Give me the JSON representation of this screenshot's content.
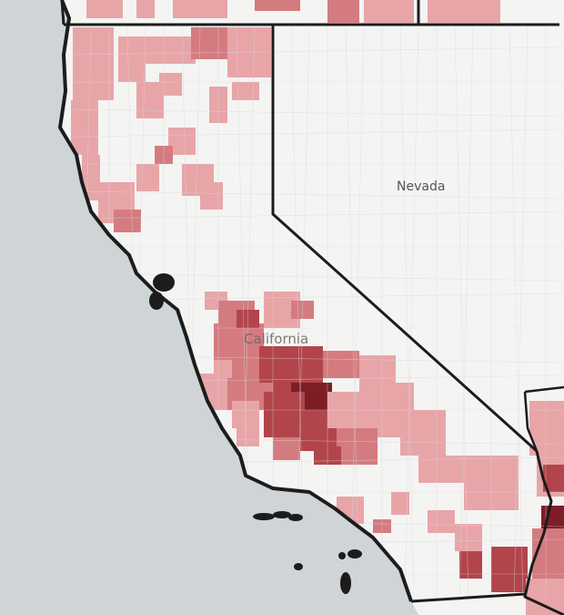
{
  "map": {
    "labels": {
      "nevada": "Nevada",
      "california": "California"
    },
    "colors": {
      "ocean": "#cfd4d7",
      "land": "#f4f4f3",
      "border": "#1c1c1c",
      "county_lines": "#d8d8d8",
      "choropleth_light": "#e8a5a8",
      "choropleth_medium": "#d47b80",
      "choropleth_dark": "#b2444c",
      "choropleth_darkest": "#7d1e26"
    }
  }
}
